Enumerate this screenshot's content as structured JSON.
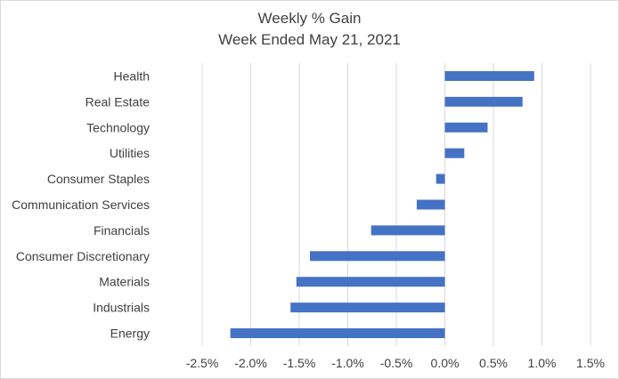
{
  "chart_data": {
    "type": "bar",
    "orientation": "horizontal",
    "title": "Weekly % Gain",
    "subtitle": "Week Ended May 21, 2021",
    "categories": [
      "Health",
      "Real Estate",
      "Technology",
      "Utilities",
      "Consumer Staples",
      "Communication Services",
      "Financials",
      "Consumer Discretionary",
      "Materials",
      "Industrials",
      "Energy"
    ],
    "values": [
      0.92,
      0.8,
      0.44,
      0.2,
      -0.09,
      -0.29,
      -0.76,
      -1.39,
      -1.53,
      -1.59,
      -2.21
    ],
    "xlim": [
      -2.5,
      1.5
    ],
    "x_ticks": [
      -2.5,
      -2.0,
      -1.5,
      -1.0,
      -0.5,
      0.0,
      0.5,
      1.0,
      1.5
    ],
    "x_tick_labels": [
      "-2.5%",
      "-2.0%",
      "-1.5%",
      "-1.0%",
      "-0.5%",
      "0.0%",
      "0.5%",
      "1.0%",
      "1.5%"
    ],
    "grid": "vertical",
    "legend": "none",
    "bar_color": "#4472c4",
    "grid_color": "#d9d9d9"
  }
}
